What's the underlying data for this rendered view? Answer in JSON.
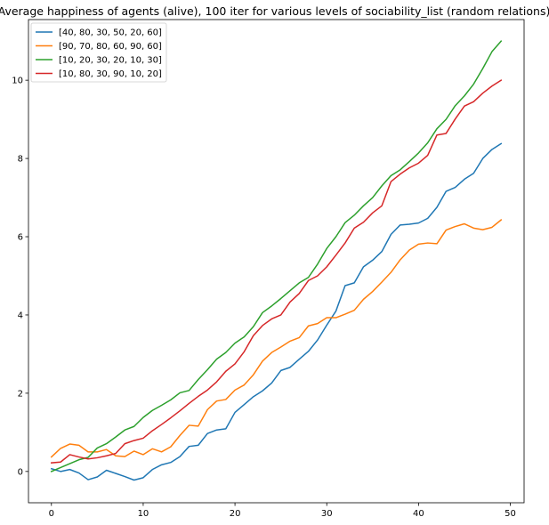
{
  "chart_data": {
    "type": "line",
    "title": "Average happiness of agents (alive), 100 iter for various levels of sociability_list  (random relations)",
    "xlabel": "",
    "ylabel": "",
    "xlim": [
      -2.5,
      51.5
    ],
    "ylim": [
      -0.8,
      11.55
    ],
    "x_ticks": [
      0,
      10,
      20,
      30,
      40,
      50
    ],
    "y_ticks": [
      0,
      2,
      4,
      6,
      8,
      10
    ],
    "grid": false,
    "legend_position": "top-left",
    "x": [
      0,
      1,
      2,
      3,
      4,
      5,
      6,
      7,
      8,
      9,
      10,
      11,
      12,
      13,
      14,
      15,
      16,
      17,
      18,
      19,
      20,
      21,
      22,
      23,
      24,
      25,
      26,
      27,
      28,
      29,
      30,
      31,
      32,
      33,
      34,
      35,
      36,
      37,
      38,
      39,
      40,
      41,
      42,
      43,
      44,
      45,
      46,
      47,
      48,
      49
    ],
    "series": [
      {
        "name": "[40, 80, 30, 50, 20, 60]",
        "color": "#1f77b4",
        "values": [
          0.07,
          0.0,
          0.05,
          -0.04,
          -0.21,
          -0.14,
          0.03,
          -0.05,
          -0.13,
          -0.22,
          -0.16,
          0.05,
          0.17,
          0.23,
          0.38,
          0.64,
          0.67,
          0.97,
          1.06,
          1.09,
          1.51,
          1.71,
          1.91,
          2.06,
          2.26,
          2.58,
          2.66,
          2.87,
          3.07,
          3.36,
          3.74,
          4.1,
          4.75,
          4.82,
          5.23,
          5.4,
          5.62,
          6.06,
          6.3,
          6.32,
          6.35,
          6.47,
          6.75,
          7.16,
          7.26,
          7.47,
          7.62,
          8.0,
          8.23,
          8.38
        ]
      },
      {
        "name": "[90, 70, 80, 60, 90, 60]",
        "color": "#ff7f0e",
        "values": [
          0.37,
          0.59,
          0.7,
          0.67,
          0.5,
          0.5,
          0.56,
          0.4,
          0.38,
          0.52,
          0.43,
          0.58,
          0.5,
          0.63,
          0.92,
          1.18,
          1.16,
          1.58,
          1.8,
          1.84,
          2.08,
          2.21,
          2.47,
          2.82,
          3.04,
          3.18,
          3.33,
          3.42,
          3.72,
          3.78,
          3.93,
          3.93,
          4.02,
          4.12,
          4.4,
          4.6,
          4.84,
          5.09,
          5.41,
          5.66,
          5.81,
          5.84,
          5.82,
          6.17,
          6.26,
          6.33,
          6.22,
          6.18,
          6.24,
          6.43
        ]
      },
      {
        "name": "[10, 20, 30, 20, 10, 30]",
        "color": "#2ca02c",
        "values": [
          0.0,
          0.1,
          0.2,
          0.3,
          0.36,
          0.6,
          0.71,
          0.88,
          1.06,
          1.15,
          1.38,
          1.56,
          1.69,
          1.83,
          2.01,
          2.07,
          2.35,
          2.6,
          2.87,
          3.04,
          3.28,
          3.44,
          3.7,
          4.06,
          4.23,
          4.42,
          4.62,
          4.82,
          4.96,
          5.3,
          5.7,
          6.0,
          6.36,
          6.55,
          6.79,
          7.0,
          7.3,
          7.56,
          7.71,
          7.92,
          8.14,
          8.4,
          8.76,
          9.0,
          9.35,
          9.6,
          9.9,
          10.3,
          10.73,
          11.0
        ]
      },
      {
        "name": "[10, 80, 30, 90, 10, 20]",
        "color": "#d62728",
        "values": [
          0.22,
          0.24,
          0.43,
          0.37,
          0.32,
          0.35,
          0.4,
          0.46,
          0.71,
          0.79,
          0.85,
          1.04,
          1.2,
          1.37,
          1.55,
          1.74,
          1.92,
          2.08,
          2.29,
          2.56,
          2.75,
          3.06,
          3.47,
          3.73,
          3.9,
          4.0,
          4.33,
          4.55,
          4.88,
          5.0,
          5.23,
          5.53,
          5.84,
          6.22,
          6.37,
          6.61,
          6.79,
          7.41,
          7.6,
          7.76,
          7.88,
          8.08,
          8.6,
          8.64,
          9.01,
          9.34,
          9.45,
          9.67,
          9.85,
          10.0
        ]
      }
    ]
  }
}
